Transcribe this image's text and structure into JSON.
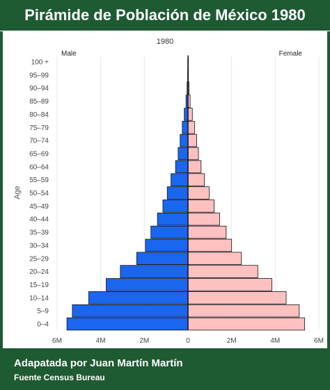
{
  "page": {
    "title": "Pirámide de Población de México 1980",
    "footer_author": "Adapatada por Juan Martín Martín",
    "footer_source": "Fuente Census Bureau"
  },
  "colors": {
    "background": "#1e5a32",
    "male": "#1a66ee",
    "female": "#ffc0c0"
  },
  "chart_data": {
    "type": "bar",
    "orientation": "horizontal-population-pyramid",
    "title": "1980",
    "ylabel": "Age",
    "left_label": "Male",
    "right_label": "Female",
    "categories": [
      "0–4",
      "5–9",
      "10–14",
      "15–19",
      "20–24",
      "25–29",
      "30–34",
      "35–39",
      "40–44",
      "45–49",
      "50–54",
      "55–59",
      "60–64",
      "65–69",
      "70–74",
      "75–79",
      "80–84",
      "85–89",
      "90–94",
      "95–99",
      "100 +"
    ],
    "series": [
      {
        "name": "Male",
        "values": [
          5.55,
          5.3,
          4.55,
          3.75,
          3.1,
          2.35,
          1.95,
          1.7,
          1.4,
          1.15,
          0.95,
          0.78,
          0.57,
          0.45,
          0.36,
          0.26,
          0.17,
          0.09,
          0.04,
          0.01,
          0.005
        ]
      },
      {
        "name": "Female",
        "values": [
          5.35,
          5.1,
          4.5,
          3.85,
          3.2,
          2.45,
          2.0,
          1.75,
          1.45,
          1.2,
          0.97,
          0.75,
          0.6,
          0.48,
          0.4,
          0.3,
          0.2,
          0.1,
          0.05,
          0.02,
          0.005
        ]
      }
    ],
    "xlim": [
      -6,
      6
    ],
    "xtick_values": [
      -6,
      -4,
      -2,
      0,
      2,
      4,
      6
    ],
    "xtick_labels": [
      "6M",
      "4M",
      "2M",
      "0",
      "2M",
      "4M",
      "6M"
    ],
    "unit": "millions",
    "grid": true
  }
}
